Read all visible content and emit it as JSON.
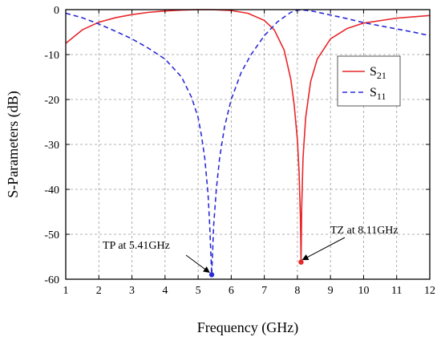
{
  "chart_data": {
    "type": "line",
    "title": "",
    "xlabel": "Frequency (GHz)",
    "ylabel": "S-Parameters (dB)",
    "xlim": [
      1,
      12
    ],
    "ylim": [
      -60,
      0
    ],
    "x_ticks": [
      1,
      2,
      3,
      4,
      5,
      6,
      7,
      8,
      9,
      10,
      11,
      12
    ],
    "y_ticks": [
      0,
      -10,
      -20,
      -30,
      -40,
      -50,
      -60
    ],
    "grid": true,
    "legend_position": "right",
    "series": [
      {
        "name": "S21",
        "name_main": "S",
        "name_sub": "21",
        "color": "#e8262a",
        "style": "solid",
        "x": [
          1.0,
          1.5,
          2.0,
          2.5,
          3.0,
          3.5,
          4.0,
          4.5,
          5.0,
          5.41,
          6.0,
          6.5,
          7.0,
          7.3,
          7.6,
          7.8,
          7.9,
          8.0,
          8.05,
          8.09,
          8.11,
          8.13,
          8.17,
          8.25,
          8.4,
          8.6,
          9.0,
          9.5,
          10.0,
          11.0,
          12.0
        ],
        "y": [
          -7.5,
          -4.5,
          -2.8,
          -1.8,
          -1.1,
          -0.6,
          -0.3,
          -0.1,
          0.0,
          0.0,
          -0.2,
          -0.8,
          -2.4,
          -4.5,
          -9.0,
          -15.5,
          -21.0,
          -29.0,
          -36.0,
          -46.0,
          -56.2,
          -44.0,
          -33.0,
          -24.0,
          -16.0,
          -11.0,
          -6.5,
          -4.2,
          -3.0,
          -1.9,
          -1.3
        ]
      },
      {
        "name": "S11",
        "name_main": "S",
        "name_sub": "11",
        "color": "#2b2bd8",
        "style": "dashed",
        "x": [
          1.0,
          1.5,
          2.0,
          2.5,
          3.0,
          3.5,
          4.0,
          4.5,
          4.8,
          5.0,
          5.1,
          5.2,
          5.3,
          5.35,
          5.41,
          5.47,
          5.55,
          5.65,
          5.8,
          6.0,
          6.3,
          6.6,
          7.0,
          7.4,
          7.8,
          8.0,
          8.2,
          8.5,
          9.0,
          9.5,
          10.0,
          10.5,
          11.0,
          11.5,
          12.0
        ],
        "y": [
          -0.8,
          -1.8,
          -3.2,
          -4.8,
          -6.5,
          -8.6,
          -11.0,
          -15.0,
          -19.5,
          -24.0,
          -28.0,
          -33.0,
          -41.0,
          -48.0,
          -59.0,
          -48.0,
          -40.0,
          -33.0,
          -26.0,
          -20.0,
          -14.0,
          -10.0,
          -5.8,
          -2.7,
          -0.6,
          -0.1,
          -0.1,
          -0.4,
          -1.2,
          -2.0,
          -2.9,
          -3.6,
          -4.3,
          -5.0,
          -5.8
        ]
      }
    ],
    "annotations": [
      {
        "name": "tp",
        "text": "TP at 5.41GHz",
        "point": [
          5.41,
          -59.0
        ],
        "color": "#2b2bd8"
      },
      {
        "name": "tz",
        "text": "TZ at 8.11GHz",
        "point": [
          8.11,
          -56.2
        ],
        "color": "#e8262a"
      }
    ]
  }
}
